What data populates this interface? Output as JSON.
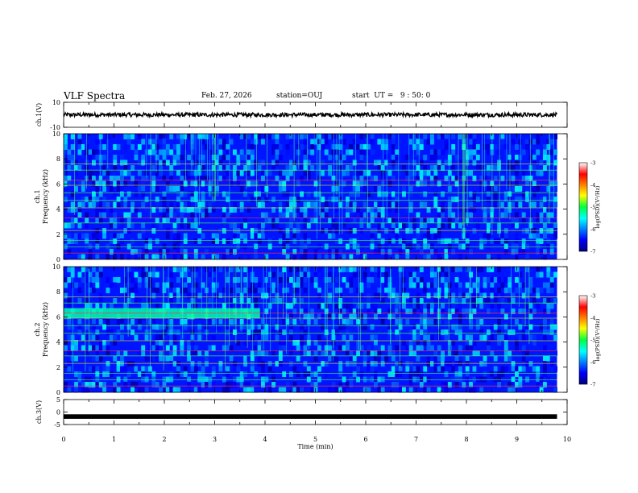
{
  "header": {
    "title": "VLF Spectra",
    "date": "Feb. 27, 2026",
    "station": "station=OUJ",
    "start_ut": "start  UT =   9 : 50: 0"
  },
  "chart_data": {
    "type": "heatmap",
    "title": "VLF Spectra",
    "xlabel": "Time  (min)",
    "x_ticks": [
      "0",
      "1",
      "2",
      "3",
      "4",
      "5",
      "6",
      "7",
      "8",
      "9",
      "10"
    ],
    "xlim": [
      0,
      10
    ],
    "data_end_min": 9.8,
    "panels": [
      {
        "id": "ch1-waveform",
        "type": "line",
        "ylabel": "ch.1(V)",
        "ylim": [
          -10,
          10
        ],
        "y_ticks": [
          "10",
          "-10"
        ],
        "offset": 0,
        "amplitude": 1.6
      },
      {
        "id": "ch1-spectrogram",
        "type": "heatmap",
        "ylabel_channel": "ch.1",
        "ylabel": "Frequency  (kHz)",
        "ylim": [
          0,
          10
        ],
        "y_ticks": [
          "0",
          "2",
          "4",
          "6",
          "8",
          "10"
        ],
        "colorbar": {
          "label": "log(PSD)(V²/Hz)",
          "range": [
            -7,
            -3
          ],
          "ticks": [
            "-3",
            "-4",
            "-5",
            "-6",
            "-7"
          ]
        }
      },
      {
        "id": "ch2-spectrogram",
        "type": "heatmap",
        "ylabel_channel": "ch.2",
        "ylabel": "Frequency  (kHz)",
        "ylim": [
          0,
          10
        ],
        "y_ticks": [
          "0",
          "2",
          "4",
          "6",
          "8",
          "10"
        ],
        "colorbar": {
          "label": "log(PSD)(V²/Hz)",
          "range": [
            -7,
            -3
          ],
          "ticks": [
            "-3",
            "-4",
            "-5",
            "-6",
            "-7"
          ]
        }
      },
      {
        "id": "ch3-waveform",
        "type": "line",
        "ylabel": "ch.3(V)",
        "ylim": [
          -5,
          5
        ],
        "y_ticks": [
          "5",
          "0",
          "-5"
        ],
        "offset": -1.8,
        "amplitude": 0.15
      }
    ],
    "notes": {
      "ch2_band": {
        "freq_khz": [
          5.9,
          6.7
        ],
        "time_min": [
          0,
          3.9
        ],
        "level": -5.3
      },
      "horizontal_lines_khz": [
        0.5,
        1.0,
        1.5,
        2.3,
        2.9,
        3.3,
        4.1,
        4.7,
        5.3,
        5.9,
        6.3,
        7.1,
        7.6
      ]
    }
  }
}
